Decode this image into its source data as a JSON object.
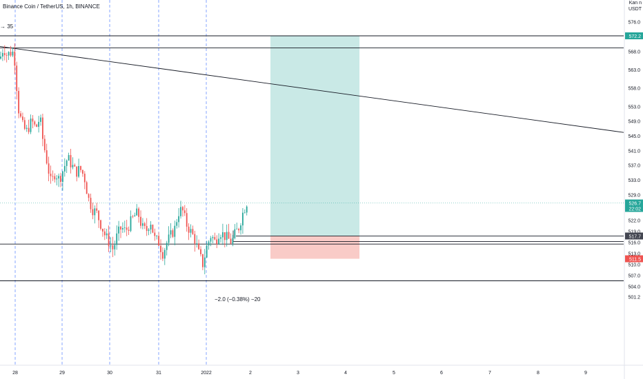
{
  "header": {
    "symbol_line": "Binance Coin / TetherUS, 1h, BINANCE",
    "fragment": "→ 35"
  },
  "price_axis": {
    "currency_top": "Kan n",
    "currency": "USDT",
    "ticks": [
      "576.0",
      "572.0",
      "568.0",
      "563.0",
      "558.0",
      "553.0",
      "549.0",
      "545.0",
      "541.0",
      "537.0",
      "533.0",
      "529.0",
      "522.0",
      "519.0",
      "516.0",
      "513.0",
      "510.0",
      "507.0",
      "504.0",
      "501.2"
    ]
  },
  "time_axis": {
    "ticks": [
      "28",
      "29",
      "30",
      "31",
      "2022",
      "2",
      "3",
      "4",
      "5",
      "6",
      "7",
      "8",
      "9"
    ]
  },
  "price_labels": {
    "target": "572.2",
    "last": "526.7",
    "countdown": "22:02",
    "entry": "517.7",
    "stop": "511.5"
  },
  "measure_label": "−2.0 (−0.38%) −20",
  "colors": {
    "up": "#26a69a",
    "down": "#ef5350",
    "profit_zone": "#26a69a",
    "loss_zone": "#f28b82",
    "target_badge": "#26a69a",
    "stop_badge": "#ef5350",
    "entry_badge": "#434651",
    "last_badge": "#26a69a",
    "grid_dash": "#2962ff"
  },
  "chart_data": {
    "type": "candlestick",
    "title": "Binance Coin / TetherUS, 1h, BINANCE",
    "ylabel": "USDT",
    "ylim": [
      500.0,
      578.0
    ],
    "x_ticks": [
      "28",
      "29",
      "30",
      "31",
      "2022",
      "2",
      "3",
      "4",
      "5",
      "6",
      "7",
      "8",
      "9"
    ],
    "candles_approx": {
      "open_first": 566.0,
      "close_last": 526.7,
      "range_low": 507.5,
      "range_high": 570.5
    },
    "horizontal_levels": [
      572.2,
      568.9,
      515.5,
      505.5
    ],
    "trendline": {
      "from": {
        "x": "28",
        "y": 568.9
      },
      "to": {
        "x": "9",
        "y": 546.0
      }
    },
    "position": {
      "type": "long",
      "entry": 517.7,
      "target": 572.2,
      "stop": 511.5,
      "from_x": "2",
      "to_x": "4"
    },
    "last_price": 526.7
  }
}
